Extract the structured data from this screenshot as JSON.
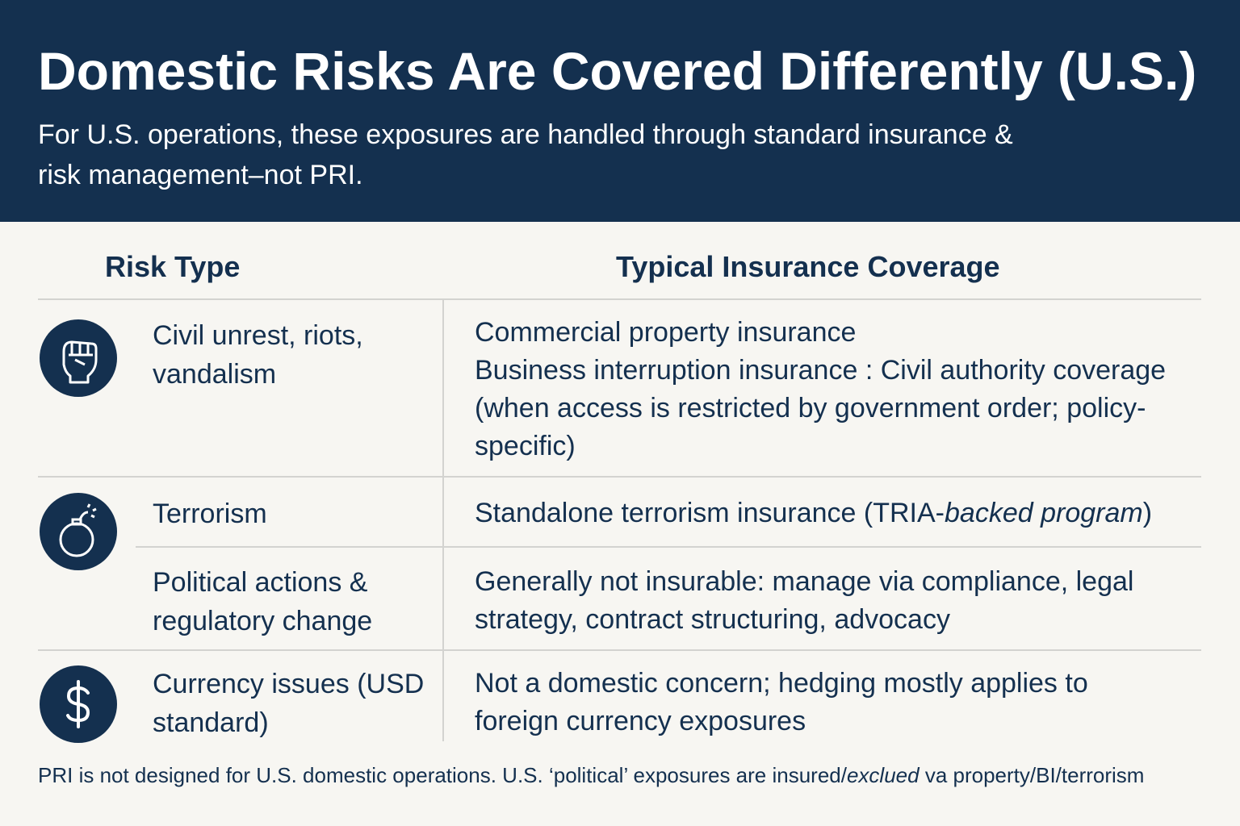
{
  "header": {
    "title": "Domestic Risks Are Covered Differently (U.S.)",
    "subtitle": "For U.S. operations, these exposures are handled through standard insurance & risk management–not PRI."
  },
  "table": {
    "headers": [
      "Risk Type",
      "Typical Insurance Coverage"
    ],
    "rows": [
      {
        "risk": "Civil unrest, riots, vandalism",
        "coverage": [
          "Commercial property insurance",
          "Business interruption insurance :  Civil authority coverage (when access is restricted by government order; policy-specific)"
        ]
      },
      {
        "risk": "Terrorism",
        "coverage": [
          "Standalone terrorism insurance (TRIA-",
          "backed program",
          ")"
        ]
      },
      {
        "risk": "Political actions & regulatory change",
        "coverage": [
          "Generally not insurable: manage via compliance, legal strategy, contract structuring, advocacy"
        ]
      },
      {
        "risk": "Currency issues (USD standard)",
        "coverage": [
          "Not a domestic concern; hedging mostly applies to foreign currency exposures"
        ]
      }
    ]
  },
  "footer": [
    "PRI is not designed for U.S. domestic operations. U.S. ‘political’ exposures are insured/",
    "exclued",
    " va property/BI/terrorism"
  ]
}
